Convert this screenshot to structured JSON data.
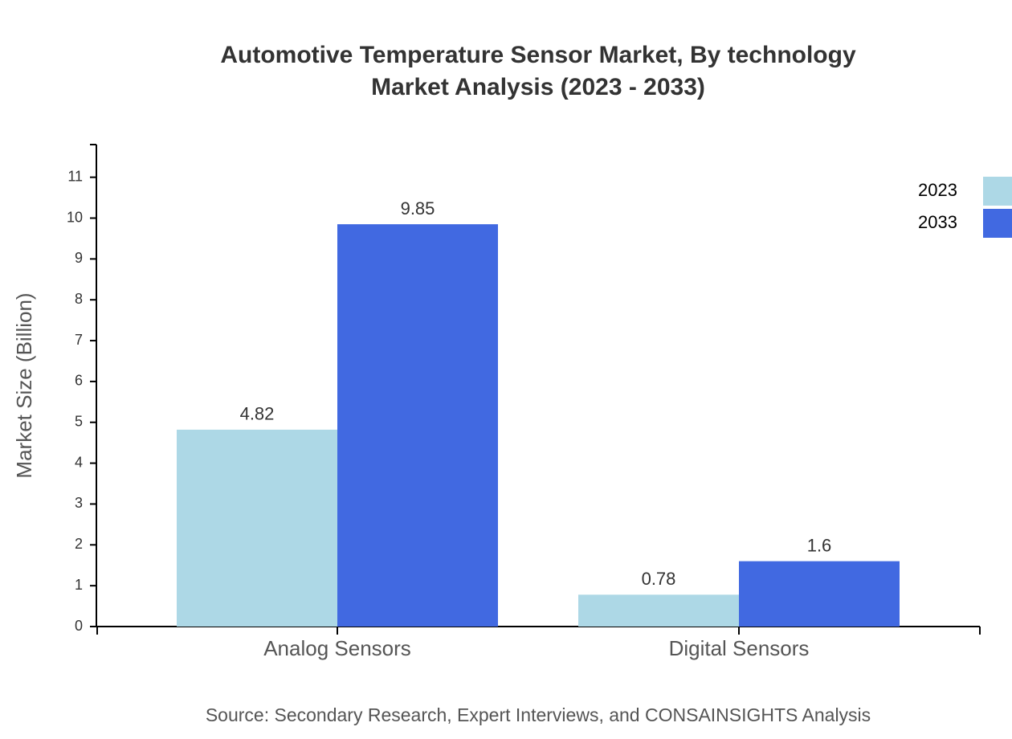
{
  "chart_data": {
    "type": "bar",
    "title": [
      "Automotive Temperature Sensor Market, By technology",
      "Market Analysis (2023 - 2033)"
    ],
    "y_label": "Market Size (Billion)",
    "source": "Source: Secondary Research, Expert Interviews, and CONSAINSIGHTS Analysis",
    "categories": [
      "Analog Sensors",
      "Digital Sensors"
    ],
    "series": [
      {
        "name": "2023",
        "color": "#add8e6",
        "values": [
          4.82,
          0.78
        ]
      },
      {
        "name": "2033",
        "color": "#4169e1",
        "values": [
          9.85,
          1.6
        ]
      }
    ],
    "ylim": [
      0,
      11.8
    ],
    "yticks": [
      0,
      1,
      2,
      3,
      4,
      5,
      6,
      7,
      8,
      9,
      10,
      11
    ],
    "legend": "top-right"
  }
}
